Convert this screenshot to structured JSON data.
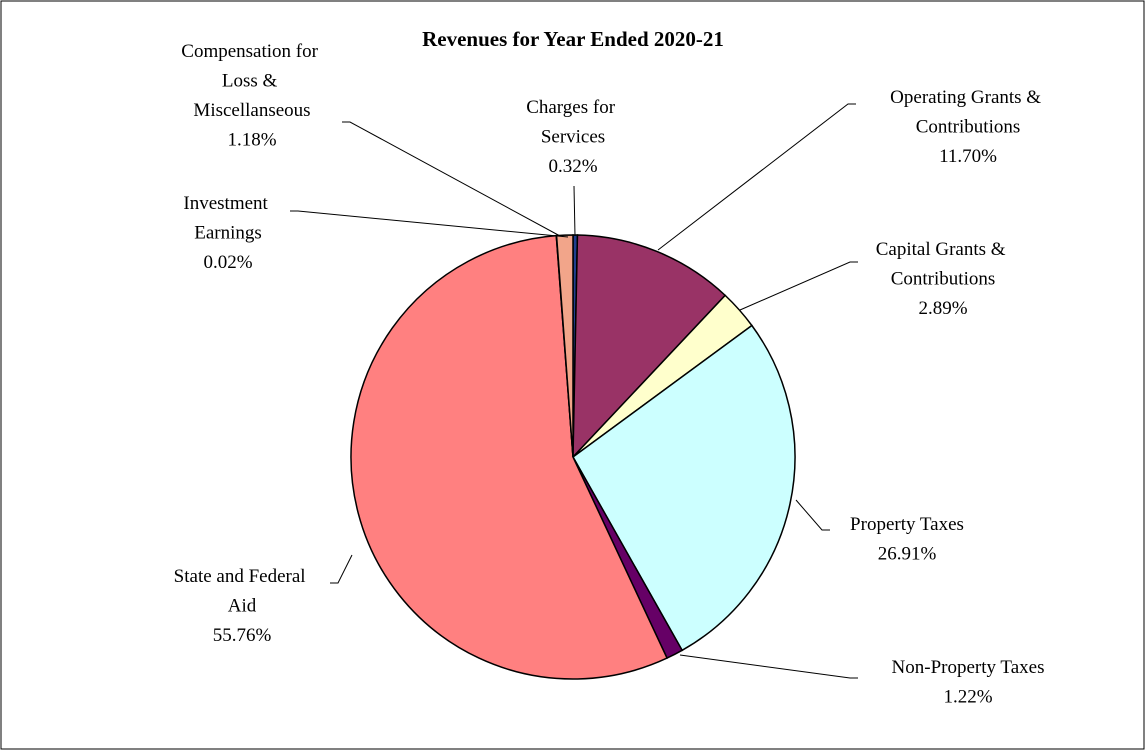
{
  "chart_data": {
    "type": "pie",
    "title": "Revenues for Year Ended 2020-21",
    "categories": [
      "Charges for Services",
      "Operating Grants & Contributions",
      "Capital Grants & Contributions",
      "Property Taxes",
      "Non-Property Taxes",
      "State and Federal Aid",
      "Investment Earnings",
      "Compensation for Loss & Miscellanseous"
    ],
    "values": [
      0.32,
      11.7,
      2.89,
      26.91,
      1.22,
      55.76,
      0.02,
      1.18
    ],
    "value_labels": [
      "0.32%",
      "11.70%",
      "2.89%",
      "26.91%",
      "1.22%",
      "55.76%",
      "0.02%",
      "1.18%"
    ],
    "colors": [
      "#1f3f8f",
      "#993366",
      "#ffffcc",
      "#ccffff",
      "#660066",
      "#ff8080",
      "#0066cc",
      "#f2a58a"
    ]
  }
}
